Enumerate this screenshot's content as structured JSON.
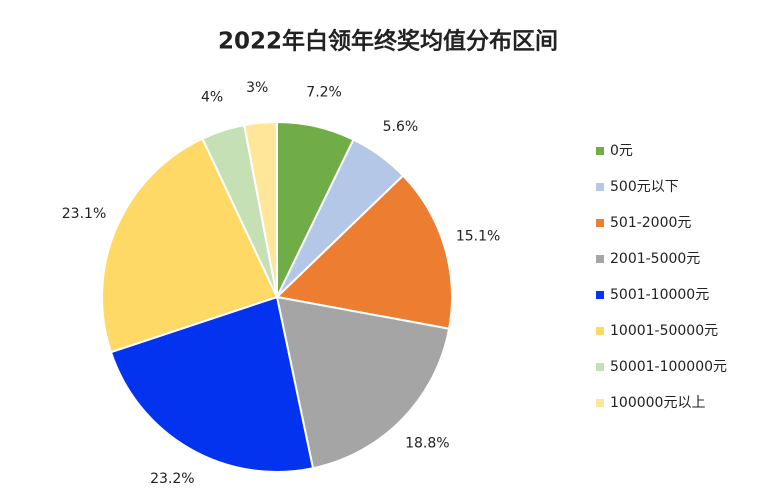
{
  "chart_data": {
    "type": "pie",
    "title": "2022年白领年终奖均值分布区间",
    "categories": [
      "0元",
      "500元以下",
      "501-2000元",
      "2001-5000元",
      "5001-10000元",
      "10001-50000元",
      "50001-100000元",
      "100000元以上"
    ],
    "values": [
      7.2,
      5.6,
      15.1,
      18.8,
      23.2,
      23.1,
      4,
      3
    ],
    "value_labels": [
      "7.2%",
      "5.6%",
      "15.1%",
      "18.8%",
      "23.2%",
      "23.1%",
      "4%",
      "3%"
    ],
    "colors": [
      "#70ad47",
      "#b4c7e7",
      "#ed7d31",
      "#a5a5a5",
      "#0433f0",
      "#ffd966",
      "#c5e0b4",
      "#ffe699"
    ],
    "legend": "right"
  }
}
